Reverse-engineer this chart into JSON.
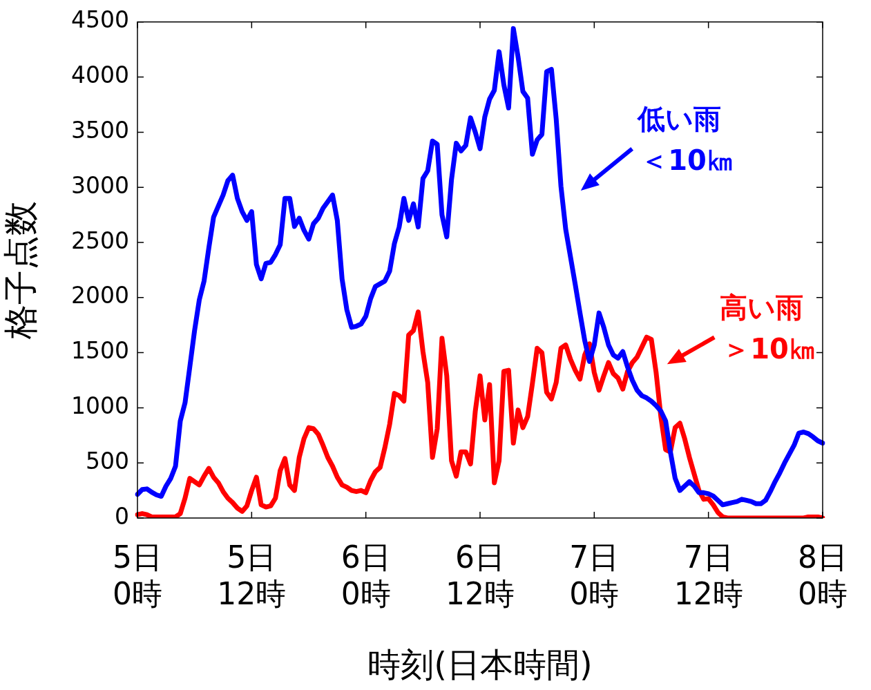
{
  "chart_data": {
    "type": "line",
    "xlabel": "時刻(日本時間)",
    "ylabel": "格子点数",
    "categories": [
      "5日\n0時",
      null,
      null,
      null,
      null,
      null,
      null,
      null,
      null,
      null,
      null,
      null,
      null,
      null,
      null,
      null,
      null,
      null,
      null,
      null,
      null,
      null,
      null,
      null,
      "5日\n12時",
      null,
      null,
      null,
      null,
      null,
      null,
      null,
      null,
      null,
      null,
      null,
      null,
      null,
      null,
      null,
      null,
      null,
      null,
      null,
      null,
      null,
      null,
      null,
      "6日\n0時",
      null,
      null,
      null,
      null,
      null,
      null,
      null,
      null,
      null,
      null,
      null,
      null,
      null,
      null,
      null,
      null,
      null,
      null,
      null,
      null,
      null,
      null,
      null,
      "6日\n12時",
      null,
      null,
      null,
      null,
      null,
      null,
      null,
      null,
      null,
      null,
      null,
      null,
      null,
      null,
      null,
      null,
      null,
      null,
      null,
      null,
      null,
      null,
      null,
      "7日\n0時",
      null,
      null,
      null,
      null,
      null,
      null,
      null,
      null,
      null,
      null,
      null,
      null,
      null,
      null,
      null,
      null,
      null,
      null,
      null,
      null,
      null,
      null,
      null,
      "7日\n12時",
      null,
      null,
      null,
      null,
      null,
      null,
      null,
      null,
      null,
      null,
      null,
      null,
      null,
      null,
      null,
      null,
      null,
      null,
      null,
      null,
      null,
      null,
      null,
      "8日\n0時"
    ],
    "ylim": [
      0,
      4500
    ],
    "yticks": [
      0,
      500,
      1000,
      1500,
      2000,
      2500,
      3000,
      3500,
      4000,
      4500
    ],
    "grid": false,
    "legend": false,
    "marker": "none",
    "line_style": "solid",
    "series": [
      {
        "color": "#0000ff",
        "values": [
          215,
          258,
          264,
          234,
          210,
          197,
          290,
          360,
          470,
          880,
          1045,
          1370,
          1700,
          1980,
          2150,
          2450,
          2730,
          2830,
          2930,
          3060,
          3110,
          2900,
          2780,
          2700,
          2780,
          2300,
          2170,
          2310,
          2320,
          2390,
          2480,
          2900,
          2900,
          2645,
          2720,
          2610,
          2530,
          2670,
          2720,
          2810,
          2870,
          2930,
          2700,
          2170,
          1890,
          1730,
          1740,
          1760,
          1830,
          1990,
          2100,
          2125,
          2150,
          2240,
          2490,
          2640,
          2900,
          2700,
          2850,
          2640,
          3080,
          3150,
          3420,
          3390,
          2750,
          2550,
          3070,
          3400,
          3330,
          3380,
          3630,
          3500,
          3350,
          3640,
          3800,
          3880,
          4230,
          3930,
          3720,
          4440,
          4180,
          3870,
          3810,
          3300,
          3430,
          3480,
          4050,
          4070,
          3620,
          3010,
          2620,
          2370,
          2120,
          1860,
          1610,
          1420,
          1570,
          1860,
          1730,
          1570,
          1480,
          1450,
          1510,
          1370,
          1250,
          1160,
          1110,
          1090,
          1060,
          1020,
          970,
          880,
          600,
          360,
          250,
          290,
          330,
          290,
          230,
          230,
          220,
          200,
          160,
          120,
          130,
          140,
          150,
          170,
          160,
          150,
          130,
          130,
          160,
          240,
          330,
          410,
          500,
          580,
          660,
          770,
          780,
          765,
          735,
          700,
          680
        ]
      },
      {
        "color": "#ff0000",
        "values": [
          30,
          40,
          30,
          10,
          10,
          10,
          10,
          10,
          10,
          40,
          180,
          360,
          330,
          300,
          380,
          450,
          370,
          320,
          240,
          180,
          140,
          90,
          60,
          110,
          250,
          370,
          120,
          100,
          110,
          180,
          430,
          540,
          300,
          250,
          550,
          720,
          820,
          810,
          760,
          660,
          550,
          470,
          370,
          300,
          280,
          250,
          240,
          250,
          230,
          340,
          420,
          460,
          640,
          850,
          1130,
          1110,
          1060,
          1660,
          1700,
          1870,
          1510,
          1230,
          550,
          810,
          1630,
          1290,
          520,
          380,
          600,
          600,
          490,
          970,
          1290,
          890,
          1210,
          320,
          520,
          1330,
          1340,
          680,
          980,
          820,
          920,
          1220,
          1540,
          1500,
          1140,
          1080,
          1230,
          1540,
          1570,
          1440,
          1340,
          1260,
          1480,
          1580,
          1320,
          1160,
          1290,
          1410,
          1310,
          1270,
          1170,
          1330,
          1410,
          1460,
          1550,
          1640,
          1620,
          1320,
          920,
          620,
          600,
          820,
          860,
          720,
          550,
          400,
          250,
          170,
          175,
          120,
          50,
          10,
          0,
          0,
          0,
          0,
          0,
          0,
          0,
          0,
          0,
          0,
          0,
          0,
          0,
          0,
          0,
          0,
          0,
          10,
          10,
          10,
          0
        ]
      }
    ],
    "annotations": [
      "低い雨＜10㎞",
      "高い雨＞10㎞"
    ]
  }
}
